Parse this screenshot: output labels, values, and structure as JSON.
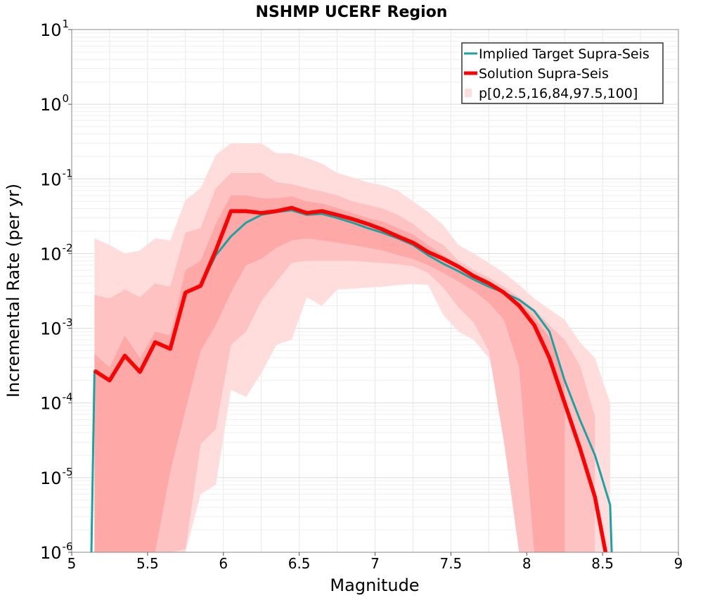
{
  "chart_data": {
    "type": "line",
    "title": "NSHMP UCERF Region",
    "xlabel": "Magnitude",
    "ylabel": "Incremental Rate (per yr)",
    "xlim": [
      5,
      9
    ],
    "ylim": [
      1e-06,
      10
    ],
    "yscale": "log",
    "grid": true,
    "legend_position": "top-right",
    "x_ticks": [
      "5",
      "5.5",
      "6",
      "6.5",
      "7",
      "7.5",
      "8",
      "8.5",
      "9"
    ],
    "y_ticks": [
      {
        "base": "10",
        "exp": "-6"
      },
      {
        "base": "10",
        "exp": "-5"
      },
      {
        "base": "10",
        "exp": "-4"
      },
      {
        "base": "10",
        "exp": "-3"
      },
      {
        "base": "10",
        "exp": "-2"
      },
      {
        "base": "10",
        "exp": "-1"
      },
      {
        "base": "10",
        "exp": "0"
      },
      {
        "base": "10",
        "exp": "1"
      }
    ],
    "legend": [
      {
        "label": "Implied Target Supra-Seis",
        "color": "#1aa3a3",
        "kind": "line"
      },
      {
        "label": "Solution Supra-Seis",
        "color": "#ff0000",
        "kind": "line"
      },
      {
        "label": "p[0,2.5,16,84,97.5,100]",
        "color": "#ffdddd",
        "kind": "band"
      }
    ],
    "series": [
      {
        "name": "Implied Target Supra-Seis",
        "color": "#1aa3a3",
        "x": [
          5.13,
          5.15,
          5.25,
          5.35,
          5.45,
          5.55,
          5.65,
          5.75,
          5.85,
          5.95,
          6.05,
          6.15,
          6.25,
          6.35,
          6.45,
          6.55,
          6.65,
          6.75,
          6.85,
          6.95,
          7.05,
          7.15,
          7.25,
          7.35,
          7.45,
          7.55,
          7.65,
          7.75,
          7.85,
          7.95,
          8.05,
          8.15,
          8.25,
          8.35,
          8.45,
          8.55,
          8.56
        ],
        "y": [
          1e-06,
          0.00027,
          0.0002,
          0.00043,
          0.00026,
          0.00065,
          0.00053,
          0.003,
          0.0037,
          0.0095,
          0.017,
          0.026,
          0.033,
          0.036,
          0.038,
          0.033,
          0.034,
          0.03,
          0.026,
          0.022,
          0.019,
          0.016,
          0.013,
          0.0095,
          0.0073,
          0.0058,
          0.0045,
          0.0036,
          0.003,
          0.0024,
          0.0017,
          0.0009,
          0.0002,
          6e-05,
          2e-05,
          4.3e-06,
          1e-06
        ]
      },
      {
        "name": "Solution Supra-Seis",
        "color": "#ff0000",
        "x": [
          5.15,
          5.25,
          5.35,
          5.45,
          5.55,
          5.65,
          5.75,
          5.85,
          5.95,
          6.05,
          6.15,
          6.25,
          6.35,
          6.45,
          6.55,
          6.65,
          6.75,
          6.85,
          6.95,
          7.05,
          7.15,
          7.25,
          7.35,
          7.45,
          7.55,
          7.65,
          7.75,
          7.85,
          7.95,
          8.05,
          8.15,
          8.25,
          8.35,
          8.45,
          8.52
        ],
        "y": [
          0.00027,
          0.0002,
          0.00043,
          0.00026,
          0.00065,
          0.00053,
          0.003,
          0.0037,
          0.011,
          0.037,
          0.037,
          0.035,
          0.037,
          0.041,
          0.035,
          0.037,
          0.033,
          0.029,
          0.025,
          0.021,
          0.017,
          0.014,
          0.0105,
          0.0085,
          0.0067,
          0.005,
          0.004,
          0.003,
          0.002,
          0.0011,
          0.0004,
          0.0001,
          2.5e-05,
          5.5e-06,
          1e-06
        ]
      }
    ],
    "bands": [
      {
        "name": "p0-p100",
        "color": "#ffdddd",
        "x": [
          5.15,
          5.25,
          5.35,
          5.45,
          5.55,
          5.65,
          5.75,
          5.85,
          5.95,
          6.05,
          6.15,
          6.25,
          6.35,
          6.45,
          6.55,
          6.65,
          6.75,
          6.85,
          6.95,
          7.05,
          7.15,
          7.25,
          7.35,
          7.45,
          7.55,
          7.65,
          7.75,
          7.85,
          7.95,
          8.05,
          8.15,
          8.25,
          8.35,
          8.45,
          8.55
        ],
        "upper": [
          0.016,
          0.013,
          0.01,
          0.011,
          0.016,
          0.015,
          0.052,
          0.075,
          0.21,
          0.3,
          0.3,
          0.3,
          0.22,
          0.22,
          0.19,
          0.16,
          0.12,
          0.105,
          0.09,
          0.082,
          0.07,
          0.05,
          0.036,
          0.024,
          0.013,
          0.01,
          0.0075,
          0.0055,
          0.0038,
          0.0025,
          0.0018,
          0.0013,
          0.00065,
          0.0004,
          0.0001
        ],
        "lower": [
          1e-06,
          1e-06,
          1e-06,
          1e-06,
          1e-06,
          1e-06,
          1e-06,
          6e-06,
          8e-06,
          0.00015,
          0.00012,
          0.00025,
          0.0006,
          0.0007,
          0.0026,
          0.002,
          0.0033,
          0.0034,
          0.0035,
          0.0036,
          0.0038,
          0.0039,
          0.0038,
          0.0015,
          0.0009,
          0.0007,
          0.0004,
          0.0001,
          5e-06,
          1e-06,
          1e-06,
          1e-06,
          1e-06,
          1e-06,
          1e-06
        ]
      },
      {
        "name": "p2.5-p97.5",
        "color": "#ffc2c2",
        "x": [
          5.15,
          5.25,
          5.35,
          5.45,
          5.55,
          5.65,
          5.75,
          5.85,
          5.95,
          6.05,
          6.15,
          6.25,
          6.35,
          6.45,
          6.55,
          6.65,
          6.75,
          6.85,
          6.95,
          7.05,
          7.15,
          7.25,
          7.35,
          7.45,
          7.55,
          7.65,
          7.75,
          7.85,
          7.95,
          8.05,
          8.15,
          8.25,
          8.35,
          8.45
        ],
        "upper": [
          0.0028,
          0.0025,
          0.0033,
          0.0026,
          0.004,
          0.0036,
          0.019,
          0.022,
          0.075,
          0.12,
          0.12,
          0.12,
          0.09,
          0.085,
          0.075,
          0.068,
          0.06,
          0.05,
          0.045,
          0.04,
          0.033,
          0.025,
          0.017,
          0.013,
          0.008,
          0.006,
          0.0048,
          0.0036,
          0.0026,
          0.0018,
          0.0011,
          0.0007,
          0.00032,
          6.5e-05
        ],
        "lower": [
          1e-06,
          1e-06,
          1e-06,
          1e-06,
          1e-06,
          1e-06,
          1.1e-06,
          2.8e-05,
          4.5e-05,
          0.0006,
          0.0009,
          0.0023,
          0.0042,
          0.0075,
          0.008,
          0.008,
          0.008,
          0.008,
          0.0077,
          0.0075,
          0.0072,
          0.0068,
          0.0055,
          0.0035,
          0.0019,
          0.0012,
          0.0005,
          3e-05,
          1e-06,
          1e-06,
          1e-06,
          1e-06,
          1e-06,
          1e-06
        ]
      },
      {
        "name": "p16-p84",
        "color": "#ffa8a8",
        "x": [
          5.15,
          5.25,
          5.35,
          5.45,
          5.55,
          5.65,
          5.75,
          5.85,
          5.95,
          6.05,
          6.15,
          6.25,
          6.35,
          6.45,
          6.55,
          6.65,
          6.75,
          6.85,
          6.95,
          7.05,
          7.15,
          7.25,
          7.35,
          7.45,
          7.55,
          7.65,
          7.75,
          7.85,
          7.95,
          8.05,
          8.15,
          8.25
        ],
        "upper": [
          0.00045,
          0.0003,
          0.0008,
          0.0004,
          0.0009,
          0.0008,
          0.006,
          0.008,
          0.025,
          0.06,
          0.06,
          0.055,
          0.055,
          0.058,
          0.05,
          0.047,
          0.041,
          0.035,
          0.03,
          0.027,
          0.022,
          0.018,
          0.013,
          0.0095,
          0.007,
          0.0055,
          0.0043,
          0.0032,
          0.0023,
          0.0014,
          0.00075,
          0.00022
        ],
        "lower": [
          1e-06,
          1e-06,
          1e-06,
          1e-06,
          1e-06,
          1.2e-05,
          8e-05,
          0.0005,
          0.0011,
          0.003,
          0.007,
          0.0085,
          0.012,
          0.015,
          0.016,
          0.015,
          0.014,
          0.013,
          0.012,
          0.011,
          0.0095,
          0.0085,
          0.007,
          0.0055,
          0.0042,
          0.0032,
          0.0022,
          0.0013,
          0.0003,
          1e-06,
          1e-06,
          1e-06
        ]
      }
    ]
  }
}
